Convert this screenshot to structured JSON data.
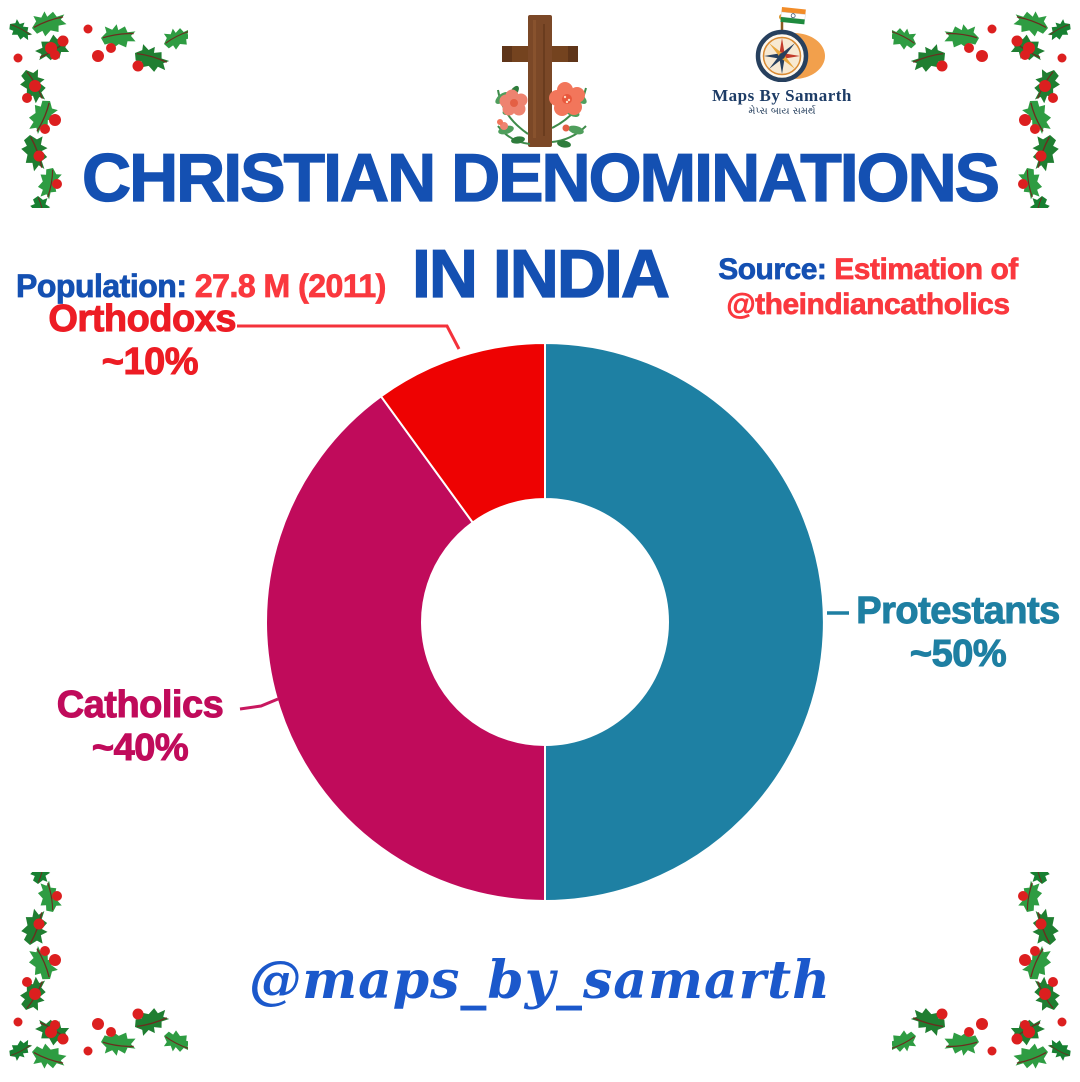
{
  "page": {
    "background": "#FFFFFF"
  },
  "header": {
    "title_line1": "CHRISTIAN DENOMINATIONS",
    "title_line2": "IN INDIA",
    "title_color": "#1450B2"
  },
  "population": {
    "label": "Population:",
    "value": "27.8 M (2011)"
  },
  "source": {
    "label": "Source:",
    "text": "Estimation of",
    "handle": "@theindiancatholics"
  },
  "logo": {
    "name": "Maps By Samarth",
    "subtitle": "મેપ્સ બાય સમર્થ"
  },
  "watermark": {
    "handle": "@maps_by_samarth",
    "color": "#1B58CB"
  },
  "decorations": {
    "corner_icon": "holly-leaves-and-berries",
    "top_icon": "wooden-cross-with-flowers",
    "logo_icon": "compass-with-india-flag"
  },
  "chart_data": {
    "type": "pie",
    "subtype": "donut",
    "title": "Christian Denominations in India",
    "direction": "clockwise",
    "start_angle_deg": 0,
    "inner_radius_ratio": 0.44,
    "separator_color": "#FFFFFF",
    "segments": [
      {
        "label": "Protestants",
        "display": "~50%",
        "value_pct": 50,
        "color": "#1E80A3",
        "label_color": "#1E7FA2"
      },
      {
        "label": "Catholics",
        "display": "~40%",
        "value_pct": 40,
        "color": "#C00B5B",
        "label_color": "#C00B5B"
      },
      {
        "label": "Orthodoxs",
        "display": "~10%",
        "value_pct": 10,
        "color": "#EE0202",
        "label_color": "#ED1C24"
      }
    ]
  }
}
